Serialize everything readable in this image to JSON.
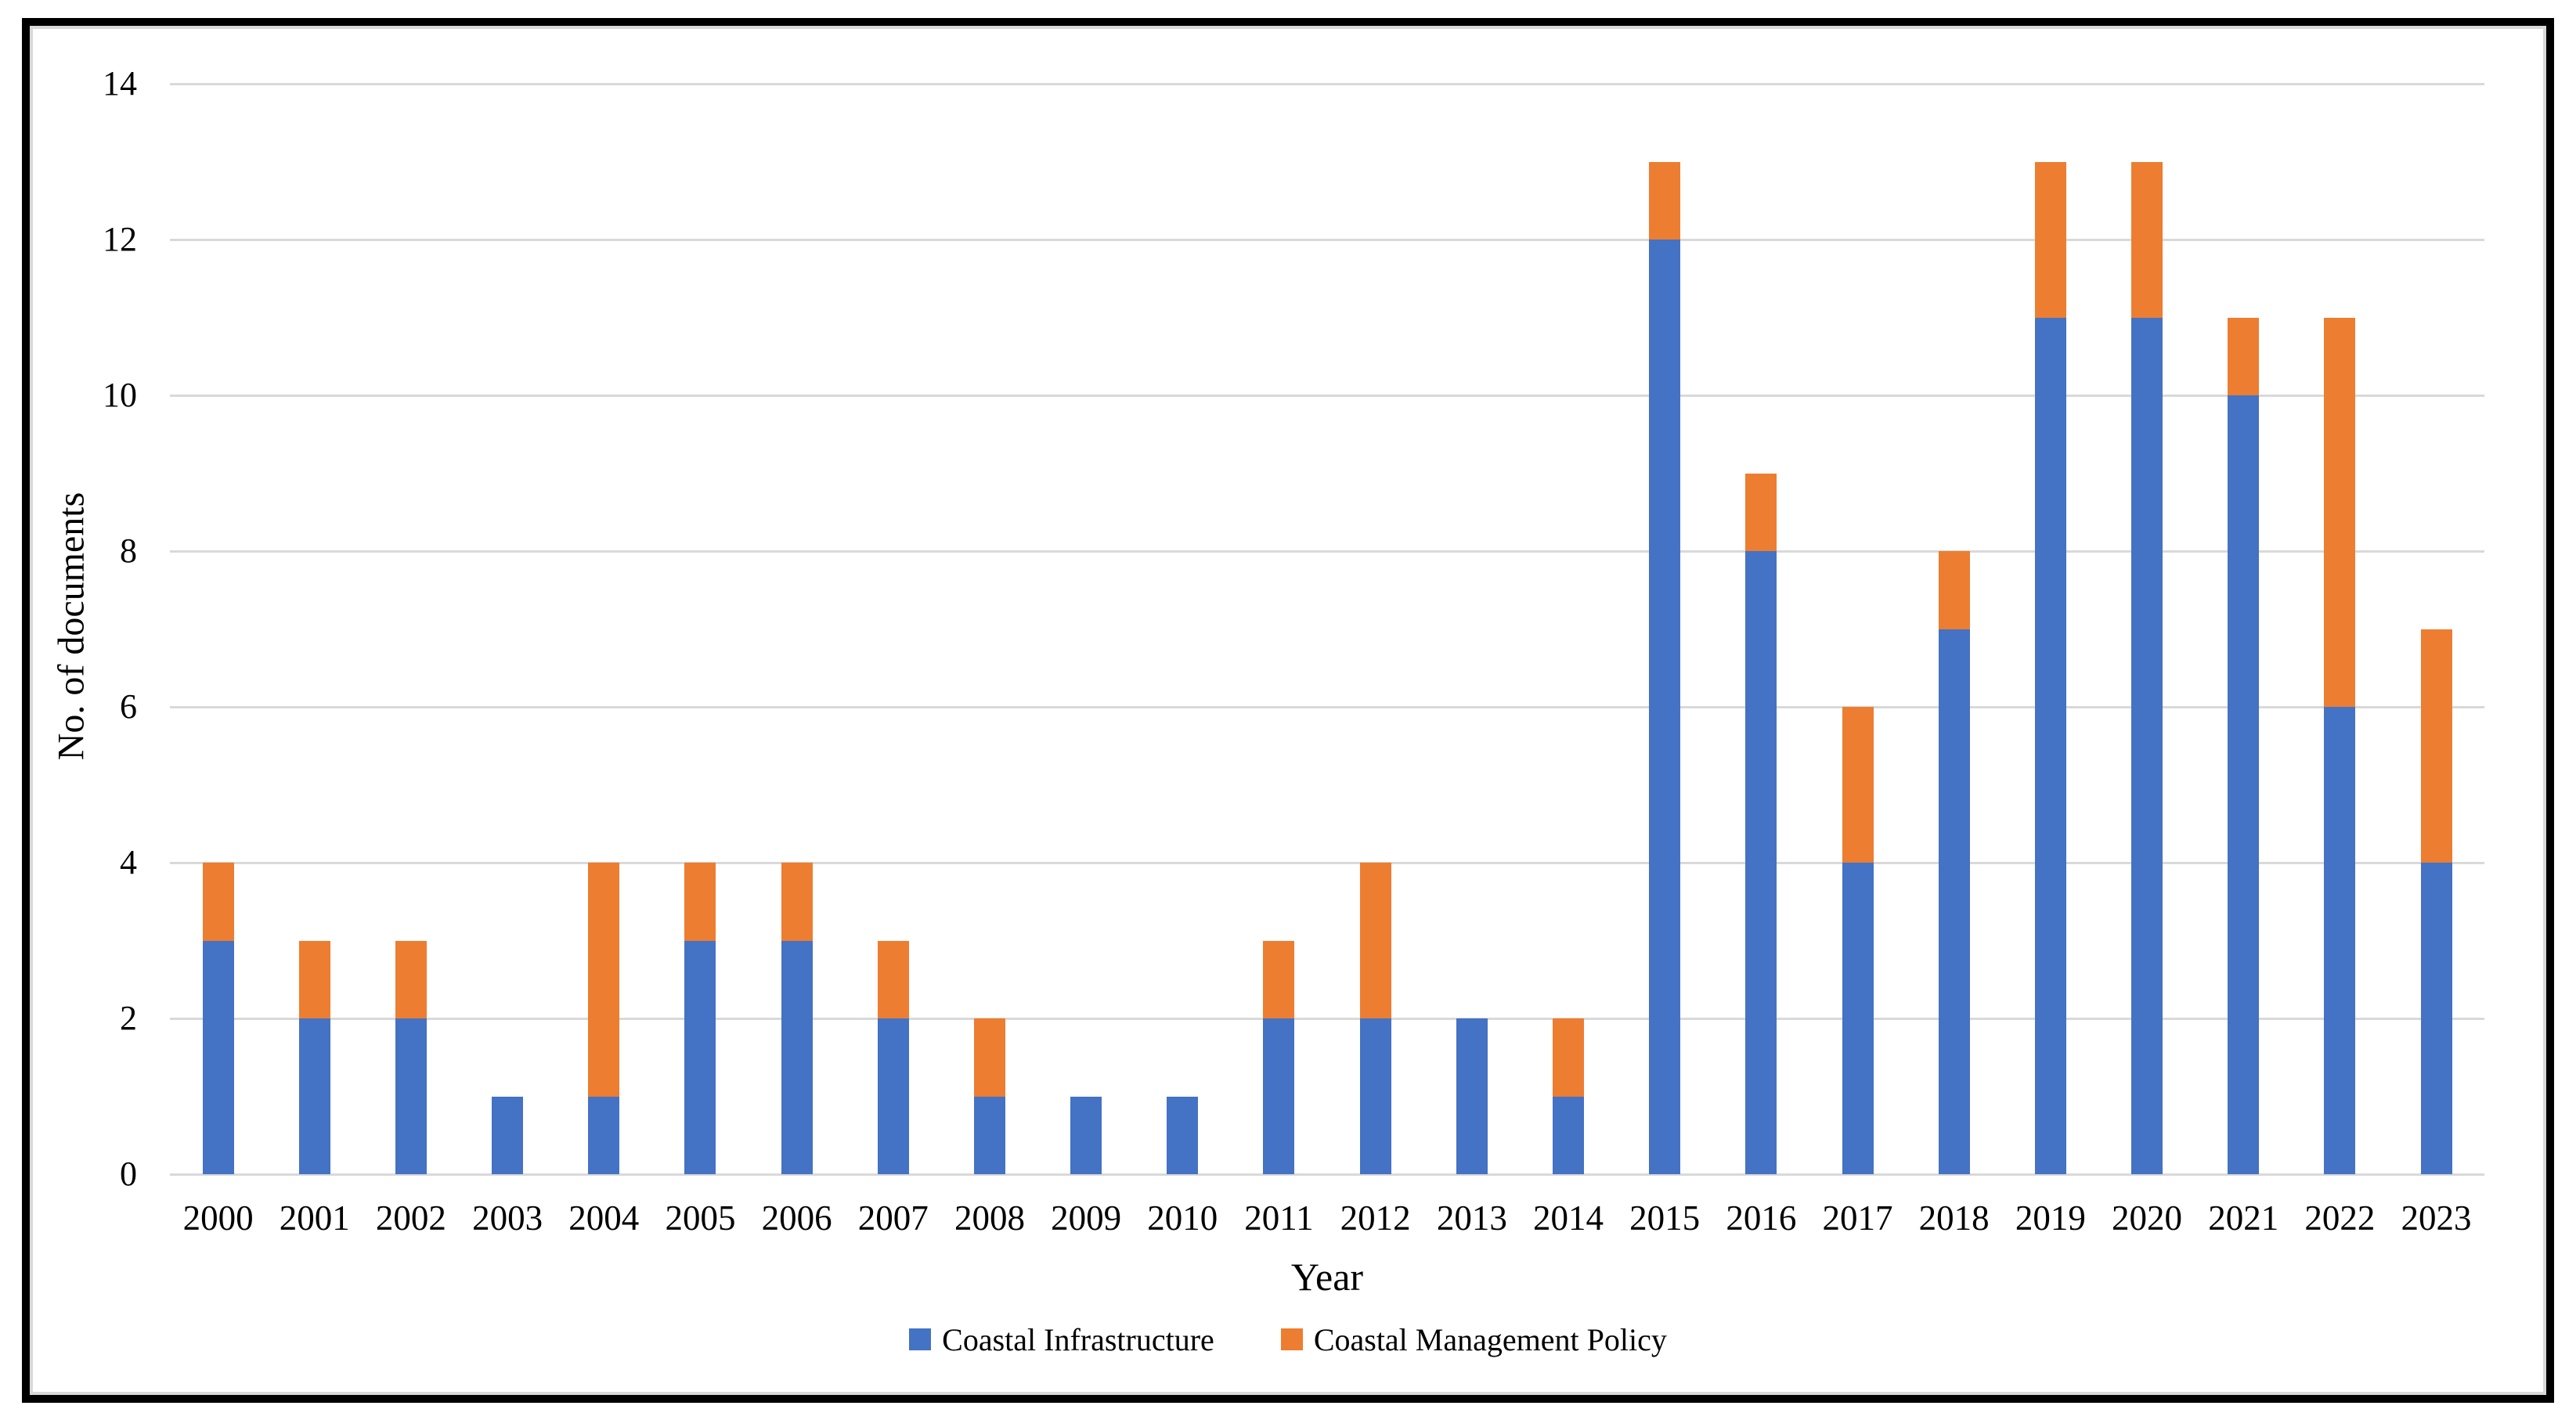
{
  "figure": {
    "background": "#FFFFFF",
    "frame_color": "#000000",
    "inner_border_color": "#D9D9D9"
  },
  "chart_data": {
    "type": "bar",
    "stacked": true,
    "title": "",
    "xlabel": "Year",
    "ylabel": "No. of documents",
    "categories": [
      "2000",
      "2001",
      "2002",
      "2003",
      "2004",
      "2005",
      "2006",
      "2007",
      "2008",
      "2009",
      "2010",
      "2011",
      "2012",
      "2013",
      "2014",
      "2015",
      "2016",
      "2017",
      "2018",
      "2019",
      "2020",
      "2021",
      "2022",
      "2023"
    ],
    "series": [
      {
        "name": "Coastal Infrastructure",
        "color": "#4472C4",
        "values": [
          3,
          2,
          2,
          1,
          1,
          3,
          3,
          2,
          1,
          1,
          1,
          2,
          2,
          2,
          1,
          12,
          8,
          4,
          7,
          11,
          11,
          10,
          6,
          4
        ]
      },
      {
        "name": "Coastal Management Policy",
        "color": "#ED7D31",
        "values": [
          1,
          1,
          1,
          0,
          3,
          1,
          1,
          1,
          1,
          0,
          0,
          1,
          2,
          0,
          1,
          1,
          1,
          2,
          1,
          2,
          2,
          1,
          5,
          3
        ]
      }
    ],
    "totals": [
      4,
      3,
      3,
      1,
      4,
      4,
      4,
      3,
      2,
      1,
      1,
      3,
      4,
      2,
      2,
      13,
      9,
      6,
      8,
      13,
      13,
      11,
      11,
      7
    ],
    "ylim": [
      0,
      14
    ],
    "yticks": [
      0,
      2,
      4,
      6,
      8,
      10,
      12,
      14
    ],
    "grid": "horizontal",
    "gridline_color": "#D9D9D9",
    "axisline_color": "#D9D9D9",
    "legend_position": "bottom"
  }
}
